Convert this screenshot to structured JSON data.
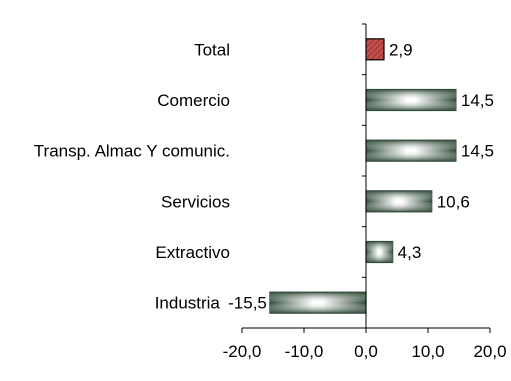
{
  "chart_data": {
    "type": "bar",
    "orientation": "horizontal",
    "categories": [
      "Total",
      "Comercio",
      "Transp. Almac Y comunic.",
      "Servicios",
      "Extractivo",
      "Industria"
    ],
    "values": [
      2.9,
      14.5,
      14.5,
      10.6,
      4.3,
      -15.5
    ],
    "value_labels": [
      "2,9",
      "14,5",
      "14,5",
      "10,6",
      "4,3",
      "-15,5"
    ],
    "xlim": [
      -20,
      20
    ],
    "ticks": [
      -20,
      -10,
      0,
      10,
      20
    ],
    "tick_labels": [
      "-20,0",
      "-10,0",
      "0,0",
      "10,0",
      "20,0"
    ],
    "title": "",
    "xlabel": "",
    "ylabel": "",
    "grid": false,
    "legend": "none",
    "colors": {
      "highlight_bar": "#c0504d",
      "bar_edge": "#2f4a38",
      "bar_light": "#ffffff",
      "axis": "#000000"
    }
  }
}
